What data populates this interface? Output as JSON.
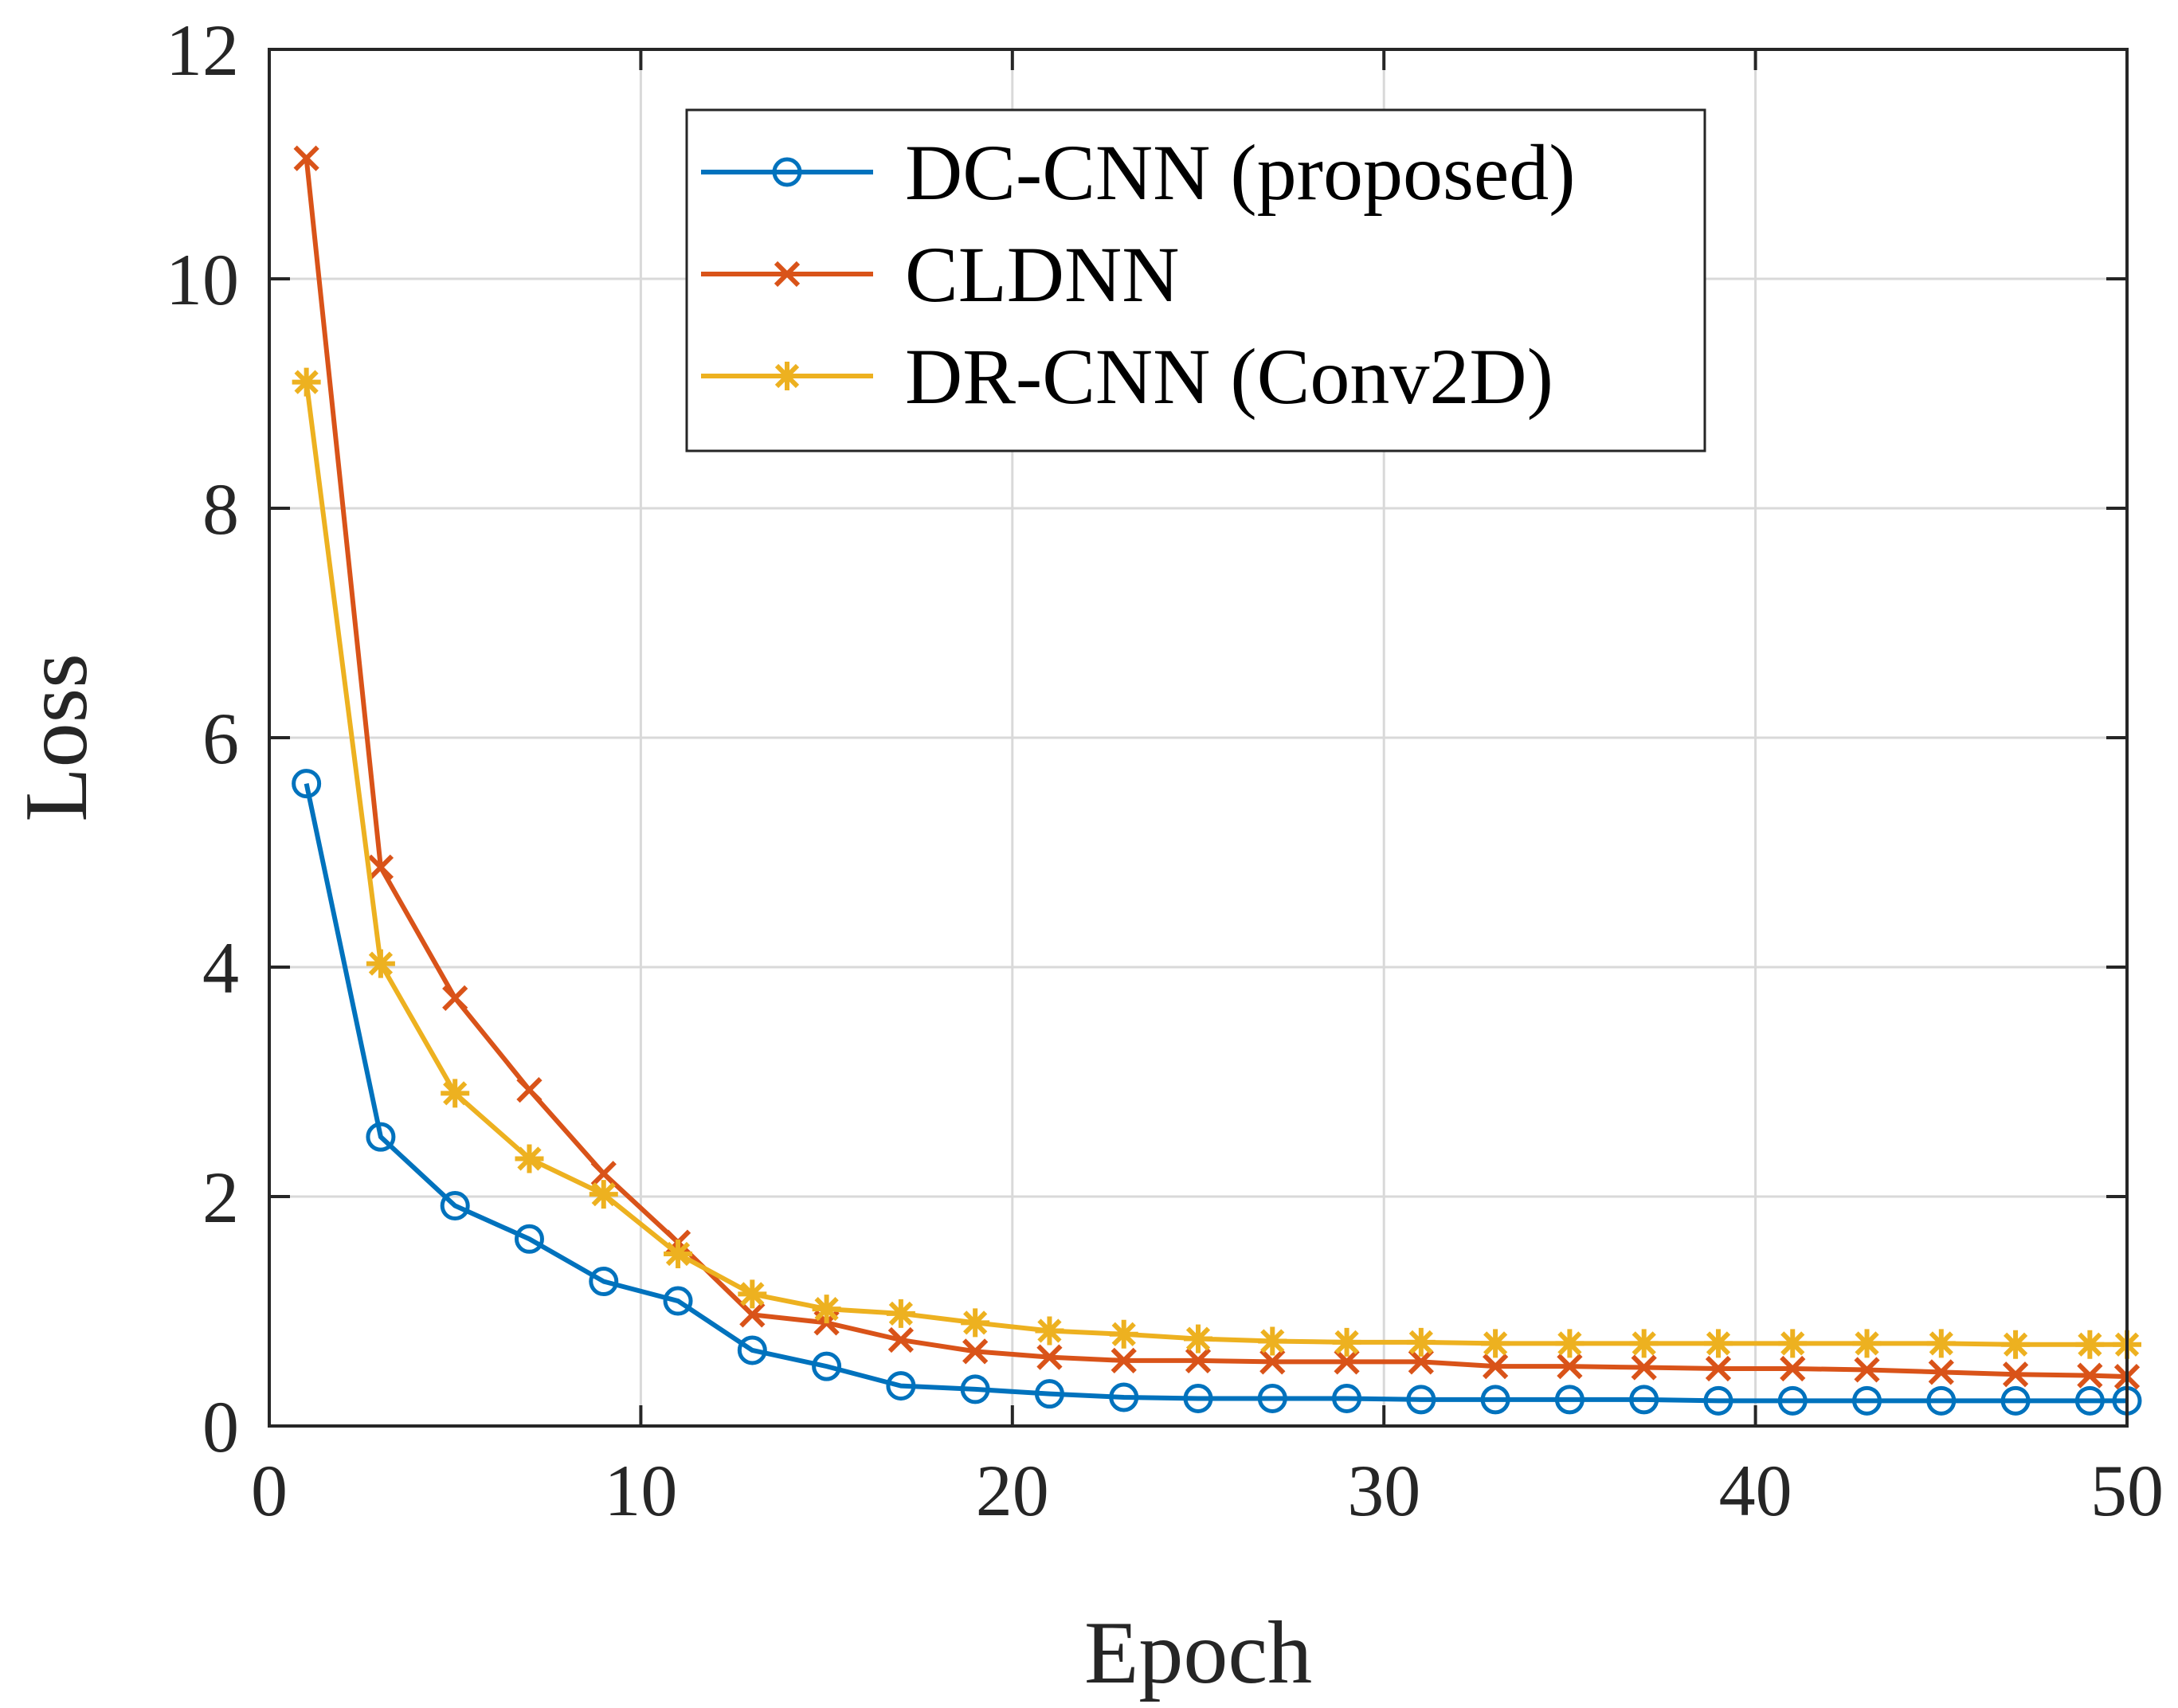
{
  "chart_data": {
    "type": "line",
    "title": "",
    "xlabel": "Epoch",
    "ylabel": "Loss",
    "xlim": [
      0,
      50
    ],
    "ylim": [
      0,
      12
    ],
    "xticks": [
      0,
      10,
      20,
      30,
      40,
      50
    ],
    "yticks": [
      0,
      2,
      4,
      6,
      8,
      10,
      12
    ],
    "grid": true,
    "legend_position": "top-center",
    "x": [
      1,
      3,
      5,
      7,
      9,
      11,
      13,
      15,
      17,
      19,
      21,
      23,
      25,
      27,
      29,
      31,
      33,
      35,
      37,
      39,
      41,
      43,
      45,
      47,
      49,
      50
    ],
    "series": [
      {
        "name": "DC-CNN (proposed)",
        "color": "#0072BD",
        "marker": "circle",
        "values": [
          5.6,
          2.52,
          1.92,
          1.63,
          1.26,
          1.09,
          0.66,
          0.52,
          0.35,
          0.32,
          0.28,
          0.25,
          0.24,
          0.24,
          0.24,
          0.23,
          0.23,
          0.23,
          0.23,
          0.22,
          0.22,
          0.22,
          0.22,
          0.22,
          0.22,
          0.22
        ]
      },
      {
        "name": "CLDNN",
        "color": "#D95319",
        "marker": "x",
        "values": [
          11.05,
          4.87,
          3.73,
          2.93,
          2.2,
          1.6,
          0.97,
          0.9,
          0.75,
          0.65,
          0.6,
          0.57,
          0.57,
          0.56,
          0.56,
          0.56,
          0.52,
          0.52,
          0.51,
          0.5,
          0.5,
          0.49,
          0.47,
          0.45,
          0.44,
          0.43
        ]
      },
      {
        "name": "DR-CNN (Conv2D)",
        "color": "#EDB120",
        "marker": "asterisk",
        "values": [
          9.1,
          4.03,
          2.9,
          2.33,
          2.02,
          1.5,
          1.15,
          1.02,
          0.98,
          0.9,
          0.83,
          0.8,
          0.76,
          0.74,
          0.73,
          0.73,
          0.72,
          0.72,
          0.72,
          0.72,
          0.72,
          0.72,
          0.72,
          0.71,
          0.71,
          0.71
        ]
      }
    ]
  }
}
